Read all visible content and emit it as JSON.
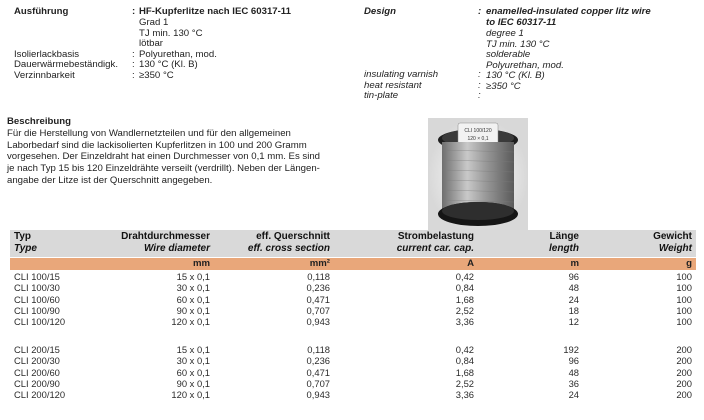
{
  "spec_de": {
    "rows": [
      {
        "label": "Ausführung",
        "colon": ":",
        "value": "HF-Kupferlitze nach IEC 60317-11"
      },
      {
        "label": "",
        "colon": "",
        "value": "Grad 1"
      },
      {
        "label": "",
        "colon": "",
        "value": "TJ min. 130 °C"
      },
      {
        "label": "",
        "colon": "",
        "value": "lötbar"
      },
      {
        "label": "Isolierlackbasis",
        "colon": ":",
        "value": "Polyurethan, mod."
      },
      {
        "label": "Dauerwärmebeständigk.",
        "colon": ":",
        "value": "130 °C (Kl. B)"
      },
      {
        "label": "Verzinnbarkeit",
        "colon": ":",
        "value": "≥350 °C"
      }
    ]
  },
  "spec_en": {
    "rows": [
      {
        "label": "Design",
        "colon": ":",
        "value": "enamelled-insulated copper litz wire"
      },
      {
        "label": "",
        "colon": "",
        "value": "to IEC 60317-11"
      },
      {
        "label": "",
        "colon": "",
        "value": "degree 1"
      },
      {
        "label": "",
        "colon": "",
        "value": "TJ min. 130 °C"
      },
      {
        "label": "",
        "colon": "",
        "value": "solderable"
      },
      {
        "label": "insulating varnish",
        "colon": ":",
        "value": "Polyurethan, mod."
      },
      {
        "label": "heat resistant",
        "colon": ":",
        "value": "130 °C (Kl. B)"
      },
      {
        "label": "tin-plate",
        "colon": ":",
        "value": "≥350 °C"
      }
    ]
  },
  "description": {
    "title": "Beschreibung",
    "lines": [
      "Für die Herstellung von Wandlernetzteilen und für den allgemeinen",
      "Laborbedarf sind die lackisolierten Kupferlitzen in 100 und 200 Gramm",
      "vorgesehen. Der Einzeldraht hat einen Durchmesser von 0,1 mm. Es sind",
      "je nach Typ 15 bis 120 Einzeldrähte verseilt (verdrillt). Neben der Längen-",
      "angabe der Litze ist der Querschnitt angegeben."
    ]
  },
  "photo": {
    "label_line1": "CLI 100/120",
    "label_line2": "120 × 0,1"
  },
  "table": {
    "headers_de": [
      "Typ",
      "Drahtdurchmesser",
      "eff. Querschnitt",
      "Strombelastung",
      "Länge",
      "Gewicht"
    ],
    "headers_en": [
      "Type",
      "Wire diameter",
      "eff. cross section",
      "current car. cap.",
      "length",
      "Weight"
    ],
    "units": [
      "",
      "mm",
      "mm²",
      "A",
      "m",
      "g"
    ],
    "group1": [
      [
        "CLI 100/15",
        "15 x 0,1",
        "0,118",
        "0,42",
        "96",
        "100"
      ],
      [
        "CLI 100/30",
        "30 x 0,1",
        "0,236",
        "0,84",
        "48",
        "100"
      ],
      [
        "CLI 100/60",
        "60 x 0,1",
        "0,471",
        "1,68",
        "24",
        "100"
      ],
      [
        "CLI 100/90",
        "90 x 0,1",
        "0,707",
        "2,52",
        "18",
        "100"
      ],
      [
        "CLI 100/120",
        "120 x 0,1",
        "0,943",
        "3,36",
        "12",
        "100"
      ]
    ],
    "group2": [
      [
        "CLI 200/15",
        "15 x 0,1",
        "0,118",
        "0,42",
        "192",
        "200"
      ],
      [
        "CLI 200/30",
        "30 x 0,1",
        "0,236",
        "0,84",
        "96",
        "200"
      ],
      [
        "CLI 200/60",
        "60 x 0,1",
        "0,471",
        "1,68",
        "48",
        "200"
      ],
      [
        "CLI 200/90",
        "90 x 0,1",
        "0,707",
        "2,52",
        "36",
        "200"
      ],
      [
        "CLI 200/120",
        "120 x 0,1",
        "0,943",
        "3,36",
        "24",
        "200"
      ]
    ]
  }
}
